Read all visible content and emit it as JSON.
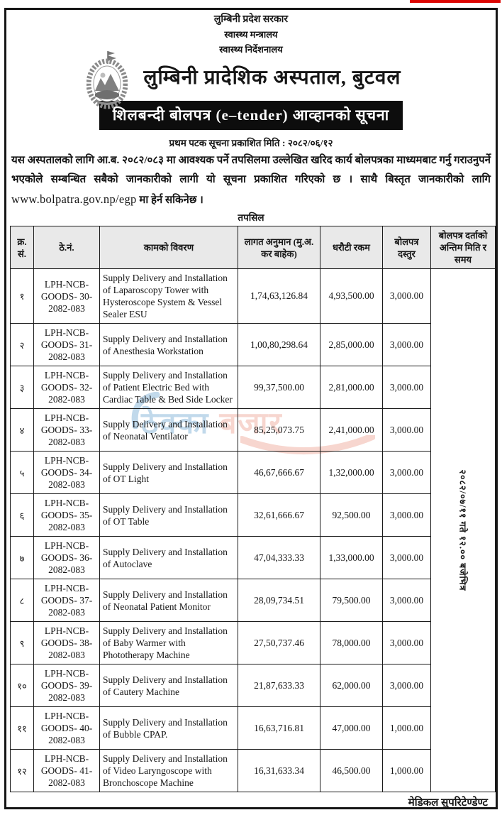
{
  "page": {
    "red_accent_color": "#dd0603",
    "header": {
      "gov_line1": "लुम्बिनी प्रदेश सरकार",
      "gov_line2": "स्वास्थ्य मन्त्रालय",
      "gov_line3": "स्वास्थ्य निर्देशनालय",
      "hospital_title": "लुम्बिनी प्रादेशिक अस्पताल, बुटवल",
      "banner_title": "शिलबन्दी बोलपत्र (e–tender) आव्हानको सूचना",
      "publish_date_line": "प्रथम पटक सूचना प्रकाशित मिति : २०८२/०६/१२"
    },
    "intro": {
      "text_before_url": "यस अस्पतालको लागि आ.ब. २०८२/०८३ मा आवश्यक पर्ने तपसिलमा उल्लेखित खरिद कार्य बोलपत्रका माध्यमबाट गर्नु गराउनुपर्ने भएकोले सम्बन्धित सबैको जानकारीको लागी यो सूचना प्रकाशित गरिएको छ । साथै बिस्तृत जानकारीको लागि ",
      "url": "www.bolpatra.gov.np/egp",
      "text_after_url": " मा हेर्न सकिनेछ ।"
    },
    "tapasil_label": "तपसिल",
    "table": {
      "headers": {
        "sn": "क्र. सं.",
        "tender_no": "ठे.नं.",
        "description": "कामको विवरण",
        "cost_estimate": "लागत अनुमान (मु.अ. कर बाहेक)",
        "deposit": "धरौटी रकम",
        "fee": "बोलपत्र दस्तुर",
        "deadline": "बोलपत्र दर्ताको अन्तिम मिति र समय"
      },
      "deadline": "२०८२/०७/११ गते १२.०० बजेभित्र",
      "rows": [
        {
          "sn": "१",
          "tender_no": "LPH-NCB-GOODS- 30-2082-083",
          "description": "Supply Delivery and Installation of Laparoscopy Tower with Hysteroscope System & Vessel Sealer ESU",
          "cost_estimate": "1,74,63,126.84",
          "deposit": "4,93,500.00",
          "fee": "3,000.00"
        },
        {
          "sn": "२",
          "tender_no": "LPH-NCB-GOODS- 31-2082-083",
          "description": "Supply Delivery and Installation of Anesthesia Workstation",
          "cost_estimate": "1,00,80,298.64",
          "deposit": "2,85,000.00",
          "fee": "3,000.00"
        },
        {
          "sn": "३",
          "tender_no": "LPH-NCB-GOODS- 32-2082-083",
          "description": "Supply Delivery and Installation of Patient Electric Bed with Cardiac Table & Bed Side Locker",
          "cost_estimate": "99,37,500.00",
          "deposit": "2,81,000.00",
          "fee": "3,000.00"
        },
        {
          "sn": "४",
          "tender_no": "LPH-NCB-GOODS- 33-2082-083",
          "description": "Supply Delivery and Installation of Neonatal Ventilator",
          "cost_estimate": "85,25,073.75",
          "deposit": "2,41,000.00",
          "fee": "3,000.00"
        },
        {
          "sn": "५",
          "tender_no": "LPH-NCB-GOODS- 34-2082-083",
          "description": "Supply Delivery and Installation of OT Light",
          "cost_estimate": "46,67,666.67",
          "deposit": "1,32,000.00",
          "fee": "3,000.00"
        },
        {
          "sn": "६",
          "tender_no": "LPH-NCB-GOODS- 35-2082-083",
          "description": "Supply Delivery and Installation of OT Table",
          "cost_estimate": "32,61,666.67",
          "deposit": "92,500.00",
          "fee": "3,000.00"
        },
        {
          "sn": "७",
          "tender_no": "LPH-NCB-GOODS- 36-2082-083",
          "description": "Supply Delivery and Installation of Autoclave",
          "cost_estimate": "47,04,333.33",
          "deposit": "1,33,000.00",
          "fee": "3,000.00"
        },
        {
          "sn": "८",
          "tender_no": "LPH-NCB-GOODS- 37-2082-083",
          "description": "Supply Delivery and Installation of Neonatal Patient Monitor",
          "cost_estimate": "28,09,734.51",
          "deposit": "79,500.00",
          "fee": "3,000.00"
        },
        {
          "sn": "९",
          "tender_no": "LPH-NCB-GOODS- 38-2082-083",
          "description": "Supply Delivery and Installation of Baby Warmer with Phototherapy Machine",
          "cost_estimate": "27,50,737.46",
          "deposit": "78,000.00",
          "fee": "3,000.00"
        },
        {
          "sn": "१०",
          "tender_no": "LPH-NCB-GOODS- 39-2082-083",
          "description": "Supply Delivery and Installation of Cautery Machine",
          "cost_estimate": "21,87,633.33",
          "deposit": "62,000.00",
          "fee": "3,000.00"
        },
        {
          "sn": "११",
          "tender_no": "LPH-NCB-GOODS- 40-2082-083",
          "description": "Supply Delivery and Installation of Bubble CPAP.",
          "cost_estimate": "16,63,716.81",
          "deposit": "47,000.00",
          "fee": "1,000.00"
        },
        {
          "sn": "१२",
          "tender_no": "LPH-NCB-GOODS- 41-2082-083",
          "description": "Supply Delivery and Installation of Video Laryngoscope with Bronchoscope Machine",
          "cost_estimate": "16,31,633.34",
          "deposit": "46,500.00",
          "fee": "1,000.00"
        }
      ]
    },
    "watermark": {
      "part1": "ठेक्का",
      "part2": "बजार",
      "blue": "#9cc2e0",
      "pink": "#f3beb2"
    },
    "footer_signature": "मेडिकल सुपरिटेण्डेण्ट"
  }
}
